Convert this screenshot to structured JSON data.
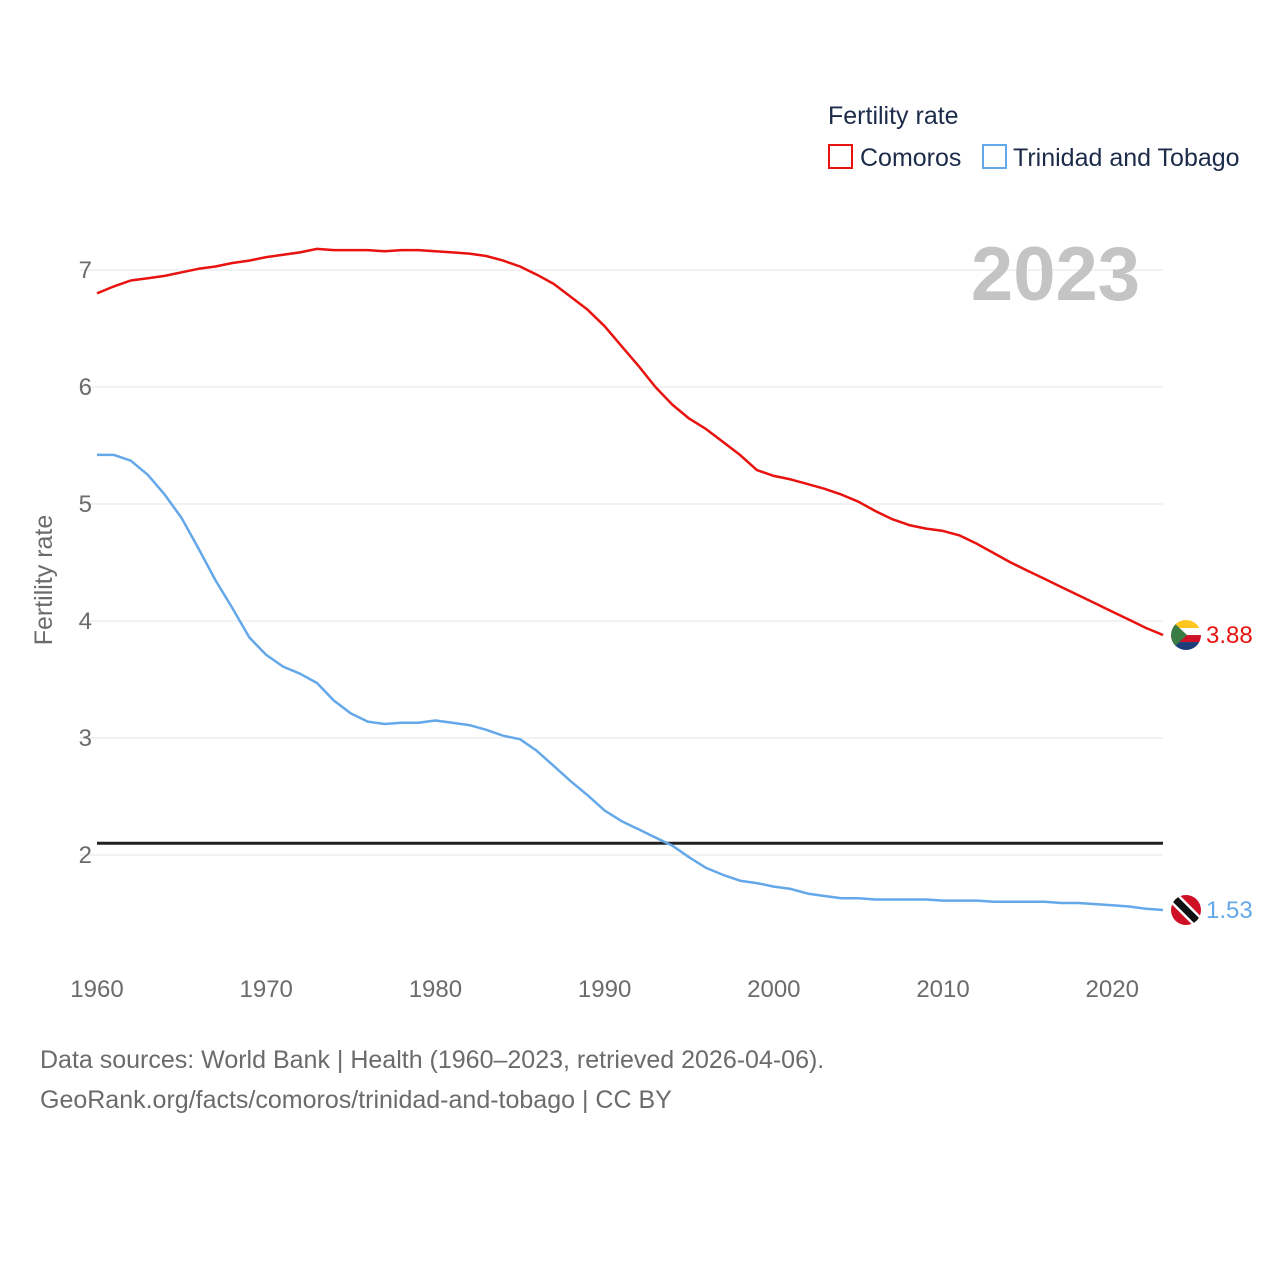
{
  "chart_data": {
    "type": "line",
    "title": "",
    "legend_title": "Fertility rate",
    "ylabel": "Fertility rate",
    "xlabel": "",
    "xlim": [
      1960,
      2023
    ],
    "ylim": [
      1.0,
      7.6
    ],
    "x_ticks": [
      1960,
      1970,
      1980,
      1990,
      2000,
      2010,
      2020
    ],
    "y_ticks": [
      2,
      3,
      4,
      5,
      6,
      7
    ],
    "current_year": "2023",
    "reference_line": 2.1,
    "x": [
      1960,
      1961,
      1962,
      1963,
      1964,
      1965,
      1966,
      1967,
      1968,
      1969,
      1970,
      1971,
      1972,
      1973,
      1974,
      1975,
      1976,
      1977,
      1978,
      1979,
      1980,
      1981,
      1982,
      1983,
      1984,
      1985,
      1986,
      1987,
      1988,
      1989,
      1990,
      1991,
      1992,
      1993,
      1994,
      1995,
      1996,
      1997,
      1998,
      1999,
      2000,
      2001,
      2002,
      2003,
      2004,
      2005,
      2006,
      2007,
      2008,
      2009,
      2010,
      2011,
      2012,
      2013,
      2014,
      2015,
      2016,
      2017,
      2018,
      2019,
      2020,
      2021,
      2022,
      2023
    ],
    "series": [
      {
        "name": "Comoros",
        "color": "#e8120f",
        "end_label": "3.88",
        "values": [
          6.8,
          6.86,
          6.91,
          6.93,
          6.95,
          6.98,
          7.01,
          7.03,
          7.06,
          7.08,
          7.11,
          7.13,
          7.15,
          7.18,
          7.17,
          7.17,
          7.17,
          7.16,
          7.17,
          7.17,
          7.16,
          7.15,
          7.14,
          7.12,
          7.08,
          7.03,
          6.96,
          6.88,
          6.77,
          6.66,
          6.52,
          6.35,
          6.18,
          6.0,
          5.85,
          5.73,
          5.64,
          5.53,
          5.42,
          5.29,
          5.24,
          5.21,
          5.17,
          5.13,
          5.08,
          5.02,
          4.94,
          4.87,
          4.82,
          4.79,
          4.77,
          4.73,
          4.66,
          4.58,
          4.5,
          4.43,
          4.36,
          4.29,
          4.22,
          4.15,
          4.08,
          4.01,
          3.94,
          3.88
        ]
      },
      {
        "name": "Trinidad and Tobago",
        "color": "#64a8ea",
        "end_label": "1.53",
        "values": [
          5.42,
          5.42,
          5.37,
          5.25,
          5.08,
          4.88,
          4.62,
          4.35,
          4.11,
          3.86,
          3.71,
          3.61,
          3.55,
          3.47,
          3.32,
          3.21,
          3.14,
          3.12,
          3.13,
          3.13,
          3.15,
          3.13,
          3.11,
          3.07,
          3.02,
          2.99,
          2.89,
          2.76,
          2.63,
          2.51,
          2.38,
          2.29,
          2.22,
          2.15,
          2.08,
          1.98,
          1.89,
          1.83,
          1.78,
          1.76,
          1.73,
          1.71,
          1.67,
          1.65,
          1.63,
          1.63,
          1.62,
          1.62,
          1.62,
          1.62,
          1.61,
          1.61,
          1.61,
          1.6,
          1.6,
          1.6,
          1.6,
          1.59,
          1.59,
          1.58,
          1.57,
          1.56,
          1.54,
          1.53
        ]
      }
    ]
  },
  "footer": {
    "line1": "Data sources: World Bank | Health (1960–2023, retrieved 2026-04-06).",
    "line2": "GeoRank.org/facts/comoros/trinidad-and-tobago | CC BY"
  }
}
